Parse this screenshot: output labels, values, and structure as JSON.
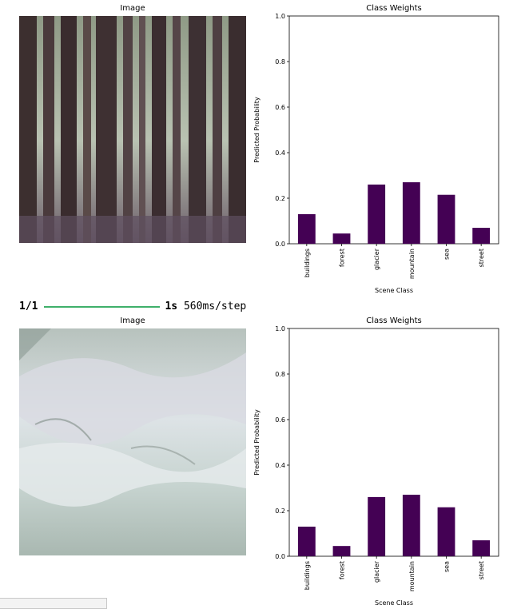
{
  "progress": {
    "count": "1/1",
    "time": "1s",
    "step": "560ms/step",
    "fraction": 1.0
  },
  "footer": {
    "text": ""
  },
  "colors": {
    "bar": "#440154",
    "progress": "#3fb06a",
    "forest_photo": "#5a4a4a",
    "glacier_photo": "#c9d6d2"
  },
  "panels": [
    {
      "image_title": "Image",
      "image_subject": "forest",
      "chart_title": "Class Weights"
    },
    {
      "image_title": "Image",
      "image_subject": "glacier",
      "chart_title": "Class Weights"
    }
  ],
  "chart_data": [
    {
      "type": "bar",
      "title": "Class Weights",
      "xlabel": "Scene Class",
      "ylabel": "Predicted Probability",
      "categories": [
        "buildings",
        "forest",
        "glacier",
        "mountain",
        "sea",
        "street"
      ],
      "values": [
        0.13,
        0.045,
        0.26,
        0.27,
        0.215,
        0.07
      ],
      "ylim": [
        0,
        1.0
      ],
      "yticks": [
        "0.0",
        "0.2",
        "0.4",
        "0.6",
        "0.8",
        "1.0"
      ],
      "grid": false
    },
    {
      "type": "bar",
      "title": "Class Weights",
      "xlabel": "Scene Class",
      "ylabel": "Predicted Probability",
      "categories": [
        "buildings",
        "forest",
        "glacier",
        "mountain",
        "sea",
        "street"
      ],
      "values": [
        0.13,
        0.045,
        0.26,
        0.27,
        0.215,
        0.07
      ],
      "ylim": [
        0,
        1.0
      ],
      "yticks": [
        "0.0",
        "0.2",
        "0.4",
        "0.6",
        "0.8",
        "1.0"
      ],
      "grid": false
    }
  ]
}
